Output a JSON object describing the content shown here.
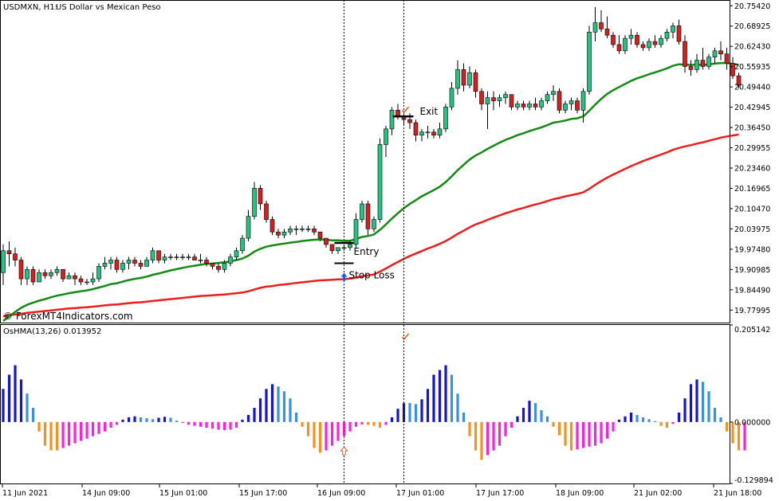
{
  "header": {
    "symbol": "USDMXN, H1:",
    "description": "US Dollar vs Mexican Peso",
    "watermark": "© ForexMT4Indicators.com"
  },
  "indicator": {
    "label": "OsHMA(13,26) 0.013952"
  },
  "annotations": {
    "exit_label": "Exit",
    "entry_label": "Entry",
    "stop_loss_label": "Stop Loss"
  },
  "colors": {
    "bull_candle": "#26c281",
    "bear_candle": "#d62020",
    "ma_fast": "#138a13",
    "ma_slow": "#ee1c1c",
    "hist_pos_strong": "#1414d2",
    "hist_pos_weak": "#3a8fe6",
    "hist_neg_strong": "#f5921e",
    "hist_neg_weak": "#ff1fde",
    "signal_up": "#1a5fd6",
    "signal_down": "#e05a1a"
  },
  "chart_data": [
    {
      "type": "candlestick",
      "ylim": [
        19.745,
        20.76
      ],
      "y_ticks": [
        "20.75420",
        "20.68925",
        "20.62430",
        "20.55935",
        "20.49440",
        "20.42945",
        "20.36450",
        "20.29955",
        "20.23460",
        "20.16965",
        "20.10470",
        "20.03975",
        "19.97480",
        "19.90985",
        "19.84490",
        "19.77995"
      ],
      "x_ticks": [
        "11 Jun 2021",
        "14 Jun 09:00",
        "15 Jun 01:00",
        "15 Jun 17:00",
        "16 Jun 09:00",
        "17 Jun 01:00",
        "17 Jun 17:00",
        "18 Jun 09:00",
        "21 Jun 02:00",
        "21 Jun 18:00"
      ],
      "ohlc": [
        [
          19.9,
          19.99,
          19.86,
          19.97
        ],
        [
          19.97,
          20.0,
          19.92,
          19.96
        ],
        [
          19.96,
          19.98,
          19.92,
          19.94
        ],
        [
          19.94,
          19.95,
          19.86,
          19.88
        ],
        [
          19.88,
          19.92,
          19.86,
          19.91
        ],
        [
          19.91,
          19.92,
          19.86,
          19.87
        ],
        [
          19.87,
          19.91,
          19.87,
          19.9
        ],
        [
          19.9,
          19.91,
          19.88,
          19.89
        ],
        [
          19.89,
          19.91,
          19.88,
          19.9
        ],
        [
          19.9,
          19.92,
          19.89,
          19.91
        ],
        [
          19.91,
          19.91,
          19.87,
          19.88
        ],
        [
          19.88,
          19.9,
          19.88,
          19.89
        ],
        [
          19.89,
          19.9,
          19.86,
          19.88
        ],
        [
          19.88,
          19.89,
          19.86,
          19.87
        ],
        [
          19.87,
          19.88,
          19.86,
          19.87
        ],
        [
          19.87,
          19.9,
          19.86,
          19.88
        ],
        [
          19.88,
          19.93,
          19.87,
          19.92
        ],
        [
          19.92,
          19.95,
          19.91,
          19.93
        ],
        [
          19.93,
          19.95,
          19.91,
          19.94
        ],
        [
          19.94,
          19.95,
          19.9,
          19.91
        ],
        [
          19.91,
          19.94,
          19.9,
          19.93
        ],
        [
          19.93,
          19.95,
          19.91,
          19.94
        ],
        [
          19.94,
          19.95,
          19.92,
          19.93
        ],
        [
          19.93,
          19.94,
          19.91,
          19.92
        ],
        [
          19.92,
          19.95,
          19.92,
          19.94
        ],
        [
          19.94,
          19.98,
          19.93,
          19.97
        ],
        [
          19.97,
          19.97,
          19.93,
          19.94
        ],
        [
          19.94,
          19.96,
          19.93,
          19.95
        ],
        [
          19.95,
          19.96,
          19.94,
          19.95
        ],
        [
          19.95,
          19.96,
          19.94,
          19.95
        ],
        [
          19.95,
          19.96,
          19.94,
          19.95
        ],
        [
          19.95,
          19.96,
          19.94,
          19.95
        ],
        [
          19.95,
          19.96,
          19.94,
          19.94
        ],
        [
          19.94,
          19.96,
          19.93,
          19.94
        ],
        [
          19.94,
          19.95,
          19.92,
          19.93
        ],
        [
          19.93,
          19.93,
          19.91,
          19.92
        ],
        [
          19.92,
          19.93,
          19.9,
          19.91
        ],
        [
          19.91,
          19.94,
          19.9,
          19.93
        ],
        [
          19.93,
          19.96,
          19.92,
          19.95
        ],
        [
          19.95,
          19.98,
          19.94,
          19.97
        ],
        [
          19.97,
          20.02,
          19.96,
          20.01
        ],
        [
          20.01,
          20.1,
          20.0,
          20.08
        ],
        [
          20.08,
          20.19,
          20.07,
          20.17
        ],
        [
          20.17,
          20.18,
          20.1,
          20.12
        ],
        [
          20.12,
          20.13,
          20.06,
          20.07
        ],
        [
          20.07,
          20.08,
          20.02,
          20.03
        ],
        [
          20.03,
          20.04,
          20.01,
          20.02
        ],
        [
          20.02,
          20.04,
          20.01,
          20.03
        ],
        [
          20.03,
          20.05,
          20.02,
          20.04
        ],
        [
          20.04,
          20.05,
          20.02,
          20.04
        ],
        [
          20.04,
          20.05,
          20.03,
          20.04
        ],
        [
          20.04,
          20.05,
          20.03,
          20.04
        ],
        [
          20.04,
          20.05,
          20.02,
          20.03
        ],
        [
          20.03,
          20.03,
          20.0,
          20.01
        ],
        [
          20.01,
          20.01,
          19.98,
          19.99
        ],
        [
          19.99,
          19.99,
          19.96,
          19.97
        ],
        [
          19.97,
          19.98,
          19.96,
          19.98
        ],
        [
          19.98,
          19.99,
          19.97,
          19.98
        ],
        [
          19.98,
          20.0,
          19.97,
          19.99
        ],
        [
          19.99,
          20.09,
          19.98,
          20.07
        ],
        [
          20.07,
          20.13,
          20.06,
          20.12
        ],
        [
          20.12,
          20.13,
          20.02,
          20.04
        ],
        [
          20.04,
          20.08,
          20.03,
          20.07
        ],
        [
          20.07,
          20.33,
          20.06,
          20.31
        ],
        [
          20.31,
          20.37,
          20.27,
          20.36
        ],
        [
          20.36,
          20.43,
          20.34,
          20.42
        ],
        [
          20.42,
          20.44,
          20.39,
          20.4
        ],
        [
          20.4,
          20.41,
          20.37,
          20.39
        ],
        [
          20.39,
          20.41,
          20.36,
          20.38
        ],
        [
          20.38,
          20.39,
          20.32,
          20.34
        ],
        [
          20.34,
          20.36,
          20.32,
          20.35
        ],
        [
          20.35,
          20.37,
          20.33,
          20.35
        ],
        [
          20.35,
          20.36,
          20.33,
          20.34
        ],
        [
          20.34,
          20.38,
          20.33,
          20.36
        ],
        [
          20.36,
          20.44,
          20.35,
          20.43
        ],
        [
          20.43,
          20.51,
          20.42,
          20.49
        ],
        [
          20.49,
          20.58,
          20.47,
          20.55
        ],
        [
          20.55,
          20.57,
          20.48,
          20.5
        ],
        [
          20.5,
          20.56,
          20.49,
          20.54
        ],
        [
          20.54,
          20.55,
          20.46,
          20.48
        ],
        [
          20.48,
          20.49,
          20.42,
          20.44
        ],
        [
          20.44,
          20.48,
          20.36,
          20.46
        ],
        [
          20.46,
          20.48,
          20.42,
          20.45
        ],
        [
          20.45,
          20.47,
          20.43,
          20.46
        ],
        [
          20.46,
          20.48,
          20.44,
          20.47
        ],
        [
          20.47,
          20.47,
          20.42,
          20.43
        ],
        [
          20.43,
          20.45,
          20.42,
          20.44
        ],
        [
          20.44,
          20.45,
          20.42,
          20.43
        ],
        [
          20.43,
          20.45,
          20.42,
          20.44
        ],
        [
          20.44,
          20.46,
          20.42,
          20.43
        ],
        [
          20.43,
          20.46,
          20.42,
          20.45
        ],
        [
          20.45,
          20.48,
          20.44,
          20.47
        ],
        [
          20.47,
          20.5,
          20.45,
          20.48
        ],
        [
          20.48,
          20.49,
          20.41,
          20.42
        ],
        [
          20.42,
          20.45,
          20.41,
          20.44
        ],
        [
          20.44,
          20.46,
          20.42,
          20.45
        ],
        [
          20.45,
          20.46,
          20.41,
          20.42
        ],
        [
          20.42,
          20.49,
          20.38,
          20.48
        ],
        [
          20.48,
          20.69,
          20.47,
          20.67
        ],
        [
          20.67,
          20.75,
          20.64,
          20.7
        ],
        [
          20.7,
          20.74,
          20.67,
          20.68
        ],
        [
          20.68,
          20.72,
          20.65,
          20.66
        ],
        [
          20.66,
          20.67,
          20.62,
          20.63
        ],
        [
          20.63,
          20.66,
          20.6,
          20.61
        ],
        [
          20.61,
          20.66,
          20.6,
          20.65
        ],
        [
          20.65,
          20.68,
          20.63,
          20.66
        ],
        [
          20.66,
          20.67,
          20.62,
          20.63
        ],
        [
          20.63,
          20.64,
          20.61,
          20.62
        ],
        [
          20.62,
          20.65,
          20.61,
          20.64
        ],
        [
          20.64,
          20.66,
          20.62,
          20.63
        ],
        [
          20.63,
          20.66,
          20.62,
          20.65
        ],
        [
          20.65,
          20.68,
          20.64,
          20.67
        ],
        [
          20.67,
          20.7,
          20.65,
          20.69
        ],
        [
          20.69,
          20.71,
          20.63,
          20.64
        ],
        [
          20.64,
          20.66,
          20.54,
          20.56
        ],
        [
          20.56,
          20.58,
          20.53,
          20.55
        ],
        [
          20.55,
          20.6,
          20.54,
          20.58
        ],
        [
          20.58,
          20.62,
          20.55,
          20.56
        ],
        [
          20.56,
          20.6,
          20.55,
          20.59
        ],
        [
          20.59,
          20.62,
          20.57,
          20.61
        ],
        [
          20.61,
          20.64,
          20.58,
          20.6
        ],
        [
          20.6,
          20.62,
          20.55,
          20.57
        ],
        [
          20.57,
          20.59,
          20.52,
          20.53
        ],
        [
          20.53,
          20.54,
          20.49,
          20.5
        ]
      ],
      "ma_fast": [
        19.745,
        19.76,
        19.774,
        19.787,
        19.797,
        19.804,
        19.81,
        19.815,
        19.821,
        19.826,
        19.83,
        19.834,
        19.837,
        19.84,
        19.843,
        19.847,
        19.852,
        19.857,
        19.863,
        19.866,
        19.871,
        19.876,
        19.88,
        19.883,
        19.887,
        19.893,
        19.897,
        19.902,
        19.907,
        19.911,
        19.915,
        19.919,
        19.922,
        19.925,
        19.928,
        19.929,
        19.931,
        19.933,
        19.936,
        19.94,
        19.945,
        19.954,
        19.967,
        19.976,
        19.983,
        19.987,
        19.99,
        19.993,
        19.996,
        19.998,
        20.001,
        20.003,
        20.005,
        20.006,
        20.005,
        20.003,
        20.003,
        20.002,
        20.002,
        20.007,
        20.014,
        20.017,
        20.022,
        20.037,
        20.054,
        20.073,
        20.09,
        20.106,
        20.12,
        20.132,
        20.144,
        20.154,
        20.164,
        20.175,
        20.19,
        20.208,
        20.228,
        20.245,
        20.262,
        20.275,
        20.285,
        20.296,
        20.306,
        20.316,
        20.325,
        20.332,
        20.34,
        20.346,
        20.353,
        20.359,
        20.365,
        20.372,
        20.38,
        20.383,
        20.387,
        20.392,
        20.394,
        20.4,
        20.418,
        20.438,
        20.456,
        20.472,
        20.484,
        20.494,
        20.504,
        20.514,
        20.522,
        20.528,
        20.535,
        20.541,
        20.547,
        20.554,
        20.562,
        20.567,
        20.566,
        20.565,
        20.566,
        20.565,
        20.567,
        20.569,
        20.571,
        20.571,
        20.568,
        20.565
      ],
      "ma_slow": [
        19.76,
        19.763,
        19.766,
        19.768,
        19.771,
        19.773,
        19.775,
        19.777,
        19.779,
        19.781,
        19.783,
        19.785,
        19.786,
        19.788,
        19.789,
        19.791,
        19.793,
        19.795,
        19.797,
        19.798,
        19.8,
        19.802,
        19.804,
        19.805,
        19.807,
        19.809,
        19.811,
        19.813,
        19.815,
        19.817,
        19.819,
        19.821,
        19.823,
        19.825,
        19.826,
        19.827,
        19.829,
        19.83,
        19.832,
        19.834,
        19.836,
        19.84,
        19.846,
        19.851,
        19.855,
        19.857,
        19.86,
        19.862,
        19.864,
        19.867,
        19.869,
        19.871,
        19.873,
        19.875,
        19.876,
        19.877,
        19.878,
        19.879,
        19.881,
        19.884,
        19.888,
        19.891,
        19.894,
        19.903,
        19.913,
        19.924,
        19.934,
        19.944,
        19.953,
        19.961,
        19.969,
        19.977,
        19.984,
        19.992,
        20.001,
        20.012,
        20.024,
        20.034,
        20.045,
        20.054,
        20.061,
        20.069,
        20.076,
        20.083,
        20.09,
        20.096,
        20.102,
        20.107,
        20.113,
        20.118,
        20.123,
        20.129,
        20.135,
        20.139,
        20.144,
        20.148,
        20.152,
        20.157,
        20.168,
        20.181,
        20.193,
        20.204,
        20.214,
        20.223,
        20.232,
        20.241,
        20.249,
        20.257,
        20.264,
        20.271,
        20.278,
        20.285,
        20.293,
        20.299,
        20.304,
        20.308,
        20.313,
        20.317,
        20.322,
        20.327,
        20.332,
        20.336,
        20.339,
        20.342
      ]
    },
    {
      "type": "bar",
      "name": "OsHMA(13,26)",
      "value": 0.013952,
      "ylim": [
        -0.129894,
        0.205142
      ],
      "y_ticks": [
        "0.205142",
        "0.000000",
        "-0.129894"
      ],
      "values": [
        0.07,
        0.1,
        0.12,
        0.09,
        0.06,
        0.03,
        -0.02,
        -0.05,
        -0.06,
        -0.06,
        -0.055,
        -0.05,
        -0.045,
        -0.04,
        -0.035,
        -0.03,
        -0.025,
        -0.02,
        -0.012,
        -0.006,
        0.005,
        0.01,
        0.012,
        0.01,
        0.008,
        0.006,
        0.009,
        0.011,
        0.009,
        0.003,
        -0.002,
        -0.006,
        -0.008,
        -0.01,
        -0.012,
        -0.014,
        -0.016,
        -0.017,
        -0.016,
        -0.012,
        0.005,
        0.015,
        0.03,
        0.05,
        0.07,
        0.08,
        0.075,
        0.065,
        0.05,
        0.02,
        -0.01,
        -0.03,
        -0.055,
        -0.065,
        -0.06,
        -0.05,
        -0.04,
        -0.03,
        -0.02,
        -0.01,
        -0.005,
        -0.006,
        -0.008,
        -0.012,
        -0.006,
        0.01,
        0.028,
        0.04,
        0.04,
        0.038,
        0.048,
        0.07,
        0.1,
        0.11,
        0.12,
        0.1,
        0.06,
        0.02,
        -0.03,
        -0.06,
        -0.08,
        -0.07,
        -0.06,
        -0.05,
        -0.03,
        -0.012,
        0.012,
        0.03,
        0.045,
        0.04,
        0.025,
        0.012,
        -0.01,
        -0.028,
        -0.05,
        -0.06,
        -0.058,
        -0.055,
        -0.052,
        -0.05,
        -0.045,
        -0.035,
        -0.02,
        0.005,
        0.012,
        0.02,
        0.015,
        0.01,
        0.006,
        0.002,
        -0.008,
        -0.012,
        -0.004,
        0.02,
        0.05,
        0.08,
        0.09,
        0.085,
        0.065,
        0.03,
        0.01,
        -0.02,
        -0.045,
        -0.06,
        -0.06
      ],
      "colors": [
        0,
        0,
        0,
        0,
        1,
        1,
        2,
        2,
        2,
        2,
        3,
        3,
        3,
        3,
        3,
        3,
        3,
        3,
        3,
        3,
        0,
        0,
        0,
        1,
        1,
        1,
        0,
        0,
        1,
        1,
        3,
        3,
        3,
        3,
        3,
        3,
        3,
        3,
        3,
        3,
        0,
        0,
        0,
        0,
        0,
        0,
        1,
        1,
        1,
        1,
        2,
        2,
        2,
        2,
        3,
        3,
        3,
        3,
        3,
        3,
        3,
        2,
        2,
        2,
        3,
        0,
        0,
        0,
        1,
        1,
        0,
        0,
        0,
        0,
        0,
        1,
        1,
        1,
        2,
        2,
        2,
        3,
        3,
        3,
        3,
        3,
        0,
        0,
        0,
        1,
        1,
        1,
        2,
        2,
        2,
        2,
        3,
        3,
        3,
        3,
        3,
        3,
        3,
        0,
        0,
        0,
        1,
        1,
        1,
        1,
        2,
        2,
        3,
        0,
        0,
        0,
        0,
        1,
        1,
        1,
        1,
        2,
        2,
        2,
        3
      ]
    }
  ]
}
